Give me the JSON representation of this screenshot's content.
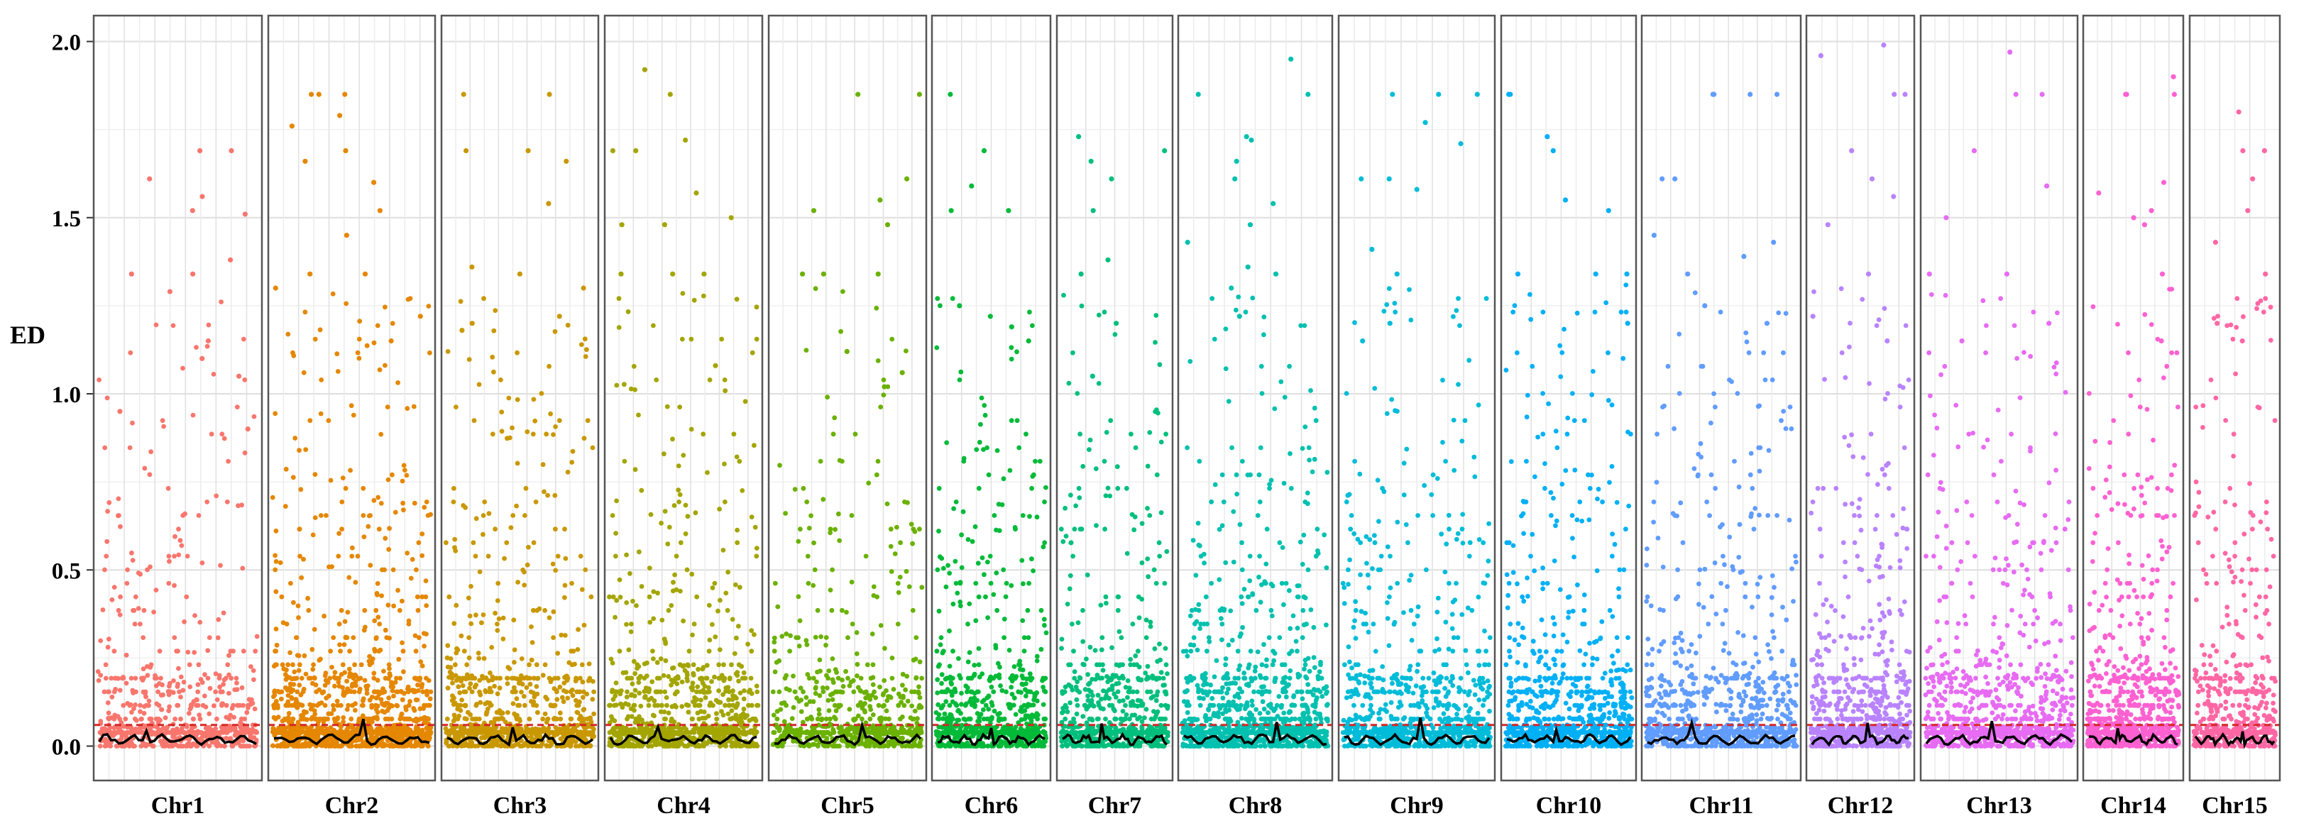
{
  "chart_data": {
    "type": "scatter",
    "ylabel": "ED",
    "xlabel": "",
    "ylim": [
      -0.02,
      2.08
    ],
    "yticks": [
      0.0,
      0.5,
      1.0,
      1.5,
      2.0
    ],
    "ytick_labels": [
      "0.0",
      "0.5",
      "1.0",
      "1.5",
      "2.0"
    ],
    "threshold": 0.06,
    "threshold_color": "#d62728",
    "smooth_line_color": "#000000",
    "grid": true,
    "facet_layout": "one panel per chromosome, left to right",
    "series": [
      {
        "name": "Chr1",
        "color": "#F8766D",
        "npoints": 700,
        "high_outliers": [
          1.69,
          1.61,
          1.56,
          1.51,
          1.34,
          1.29,
          1.15,
          1.1,
          1.05,
          1.69,
          1.52,
          1.34,
          0.95,
          0.9,
          1.38
        ]
      },
      {
        "name": "Chr2",
        "color": "#E58700",
        "npoints": 1200,
        "high_outliers": [
          1.85,
          1.85,
          1.76,
          1.85,
          1.79,
          1.69,
          1.66,
          1.6,
          1.52,
          1.45,
          1.34,
          1.34,
          1.3,
          1.22,
          1.15
        ]
      },
      {
        "name": "Chr3",
        "color": "#C99800",
        "npoints": 900,
        "high_outliers": [
          1.85,
          1.85,
          1.69,
          1.69,
          1.66,
          1.54,
          1.36,
          1.3,
          1.34,
          1.22,
          1.2,
          1.18
        ]
      },
      {
        "name": "Chr4",
        "color": "#A3A500",
        "npoints": 900,
        "high_outliers": [
          1.92,
          1.85,
          1.72,
          1.69,
          1.69,
          1.57,
          1.5,
          1.48,
          1.48,
          1.34,
          1.34,
          1.34,
          1.08
        ]
      },
      {
        "name": "Chr5",
        "color": "#6BB100",
        "npoints": 700,
        "high_outliers": [
          1.85,
          1.85,
          1.61,
          1.55,
          1.52,
          1.48,
          1.34,
          1.34,
          1.34,
          1.12,
          1.06,
          1.02
        ]
      },
      {
        "name": "Chr6",
        "color": "#00BA38",
        "npoints": 750,
        "high_outliers": [
          1.85,
          1.69,
          1.59,
          1.52,
          1.52,
          1.25,
          1.22,
          1.19,
          1.15
        ]
      },
      {
        "name": "Chr7",
        "color": "#00BF7D",
        "npoints": 700,
        "high_outliers": [
          1.73,
          1.69,
          1.66,
          1.61,
          1.52,
          1.38,
          1.34,
          1.2,
          1.05
        ]
      },
      {
        "name": "Chr8",
        "color": "#00C0AF",
        "npoints": 1100,
        "high_outliers": [
          1.95,
          1.85,
          1.85,
          1.73,
          1.72,
          1.66,
          1.61,
          1.54,
          1.48,
          1.43,
          1.36,
          1.34,
          1.3,
          1.22
        ]
      },
      {
        "name": "Chr9",
        "color": "#00BCD8",
        "npoints": 900,
        "high_outliers": [
          1.85,
          1.85,
          1.85,
          1.77,
          1.71,
          1.61,
          1.61,
          1.58,
          1.41,
          1.34,
          1.2,
          1.15
        ]
      },
      {
        "name": "Chr10",
        "color": "#00B0F6",
        "npoints": 900,
        "high_outliers": [
          1.85,
          1.85,
          1.73,
          1.69,
          1.55,
          1.52,
          1.34,
          1.34,
          1.34,
          1.2
        ]
      },
      {
        "name": "Chr11",
        "color": "#619CFF",
        "npoints": 900,
        "high_outliers": [
          1.85,
          1.85,
          1.85,
          1.85,
          1.61,
          1.61,
          1.45,
          1.43,
          1.39,
          1.34,
          1.25,
          1.2
        ]
      },
      {
        "name": "Chr12",
        "color": "#B983FF",
        "npoints": 750,
        "high_outliers": [
          1.99,
          1.96,
          1.85,
          1.85,
          1.69,
          1.61,
          1.56,
          1.48,
          1.34,
          1.22,
          1.15
        ]
      },
      {
        "name": "Chr13",
        "color": "#E76BF3",
        "npoints": 900,
        "high_outliers": [
          1.97,
          1.85,
          1.85,
          1.69,
          1.59,
          1.5,
          1.34,
          1.34,
          1.2,
          1.15
        ]
      },
      {
        "name": "Chr14",
        "color": "#FD61D1",
        "npoints": 800,
        "high_outliers": [
          1.9,
          1.85,
          1.85,
          1.85,
          1.6,
          1.57,
          1.52,
          1.5,
          1.48,
          1.34,
          1.15
        ]
      },
      {
        "name": "Chr15",
        "color": "#FF67A4",
        "npoints": 550,
        "high_outliers": [
          1.8,
          1.69,
          1.69,
          1.61,
          1.52,
          1.43,
          1.34,
          1.2,
          1.15
        ]
      }
    ]
  }
}
